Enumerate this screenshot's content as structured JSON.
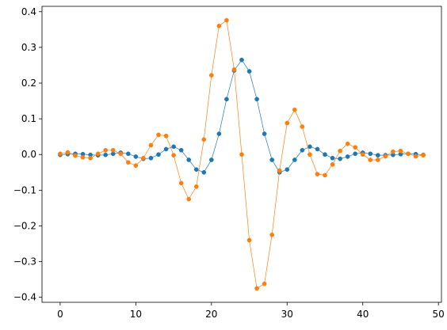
{
  "chart_data": {
    "type": "line",
    "title": "",
    "xlabel": "",
    "ylabel": "",
    "xlim": [
      -2.4,
      50.4
    ],
    "ylim": [
      -0.414,
      0.415
    ],
    "x_ticks": [
      0,
      10,
      20,
      30,
      40,
      50
    ],
    "x_tick_labels": [
      "0",
      "10",
      "20",
      "30",
      "40",
      "50"
    ],
    "y_ticks": [
      -0.4,
      -0.3,
      -0.2,
      -0.1,
      0.0,
      0.1,
      0.2,
      0.3,
      0.4
    ],
    "y_tick_labels": [
      "−0.4",
      "−0.3",
      "−0.2",
      "−0.1",
      "0.0",
      "0.1",
      "0.2",
      "0.3",
      "0.4"
    ],
    "grid": false,
    "legend": "none",
    "x": [
      0,
      1,
      2,
      3,
      4,
      5,
      6,
      7,
      8,
      9,
      10,
      11,
      12,
      13,
      14,
      15,
      16,
      17,
      18,
      19,
      20,
      21,
      22,
      23,
      24,
      25,
      26,
      27,
      28,
      29,
      30,
      31,
      32,
      33,
      34,
      35,
      36,
      37,
      38,
      39,
      40,
      41,
      42,
      43,
      44,
      45,
      46,
      47,
      48
    ],
    "series": [
      {
        "color": "#1f77b4",
        "values": [
          -0.001,
          0.001,
          0.002,
          0.001,
          -0.001,
          -0.002,
          -0.001,
          0.002,
          0.005,
          0.002,
          -0.006,
          -0.012,
          -0.01,
          0.0,
          0.015,
          0.022,
          0.012,
          -0.015,
          -0.042,
          -0.05,
          -0.015,
          0.058,
          0.155,
          0.235,
          0.265,
          0.233,
          0.155,
          0.058,
          -0.015,
          -0.05,
          -0.042,
          -0.015,
          0.012,
          0.022,
          0.015,
          0.0,
          -0.01,
          -0.012,
          -0.006,
          0.002,
          0.005,
          0.002,
          -0.002,
          -0.002,
          -0.001,
          0.001,
          0.002,
          0.001,
          -0.001
        ]
      },
      {
        "color": "#ff7f0e",
        "values": [
          0.002,
          0.006,
          -0.003,
          -0.008,
          -0.01,
          0.002,
          0.012,
          0.012,
          0.002,
          -0.022,
          -0.031,
          -0.01,
          0.026,
          0.055,
          0.052,
          -0.002,
          -0.08,
          -0.125,
          -0.09,
          0.042,
          0.222,
          0.36,
          0.376,
          0.238,
          0.0,
          -0.24,
          -0.375,
          -0.362,
          -0.225,
          -0.045,
          0.088,
          0.125,
          0.078,
          0.0,
          -0.055,
          -0.058,
          -0.028,
          0.01,
          0.03,
          0.02,
          0.0,
          -0.015,
          -0.015,
          -0.005,
          0.008,
          0.01,
          0.002,
          -0.005,
          -0.002
        ]
      }
    ]
  }
}
